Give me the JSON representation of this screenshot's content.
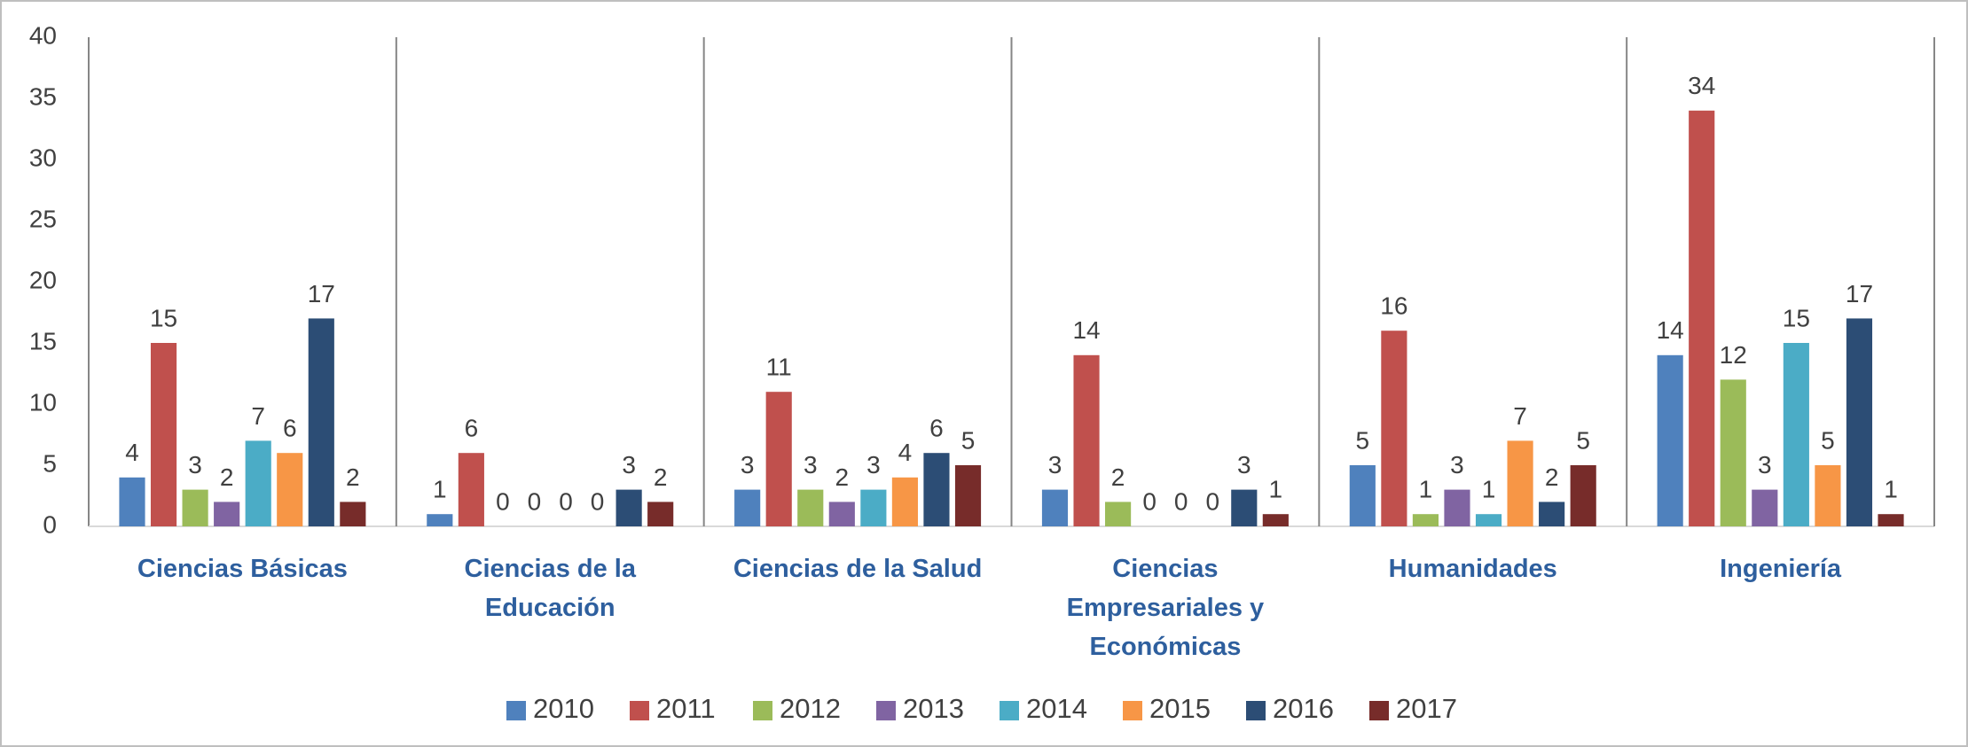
{
  "chart_data": {
    "type": "bar",
    "categories": [
      "Ciencias Básicas",
      "Ciencias de la Educación",
      "Ciencias de la Salud",
      "Ciencias Empresariales y Económicas",
      "Humanidades",
      "Ingeniería"
    ],
    "series": [
      {
        "name": "2010",
        "color": "#4f81bd",
        "values": [
          4,
          1,
          3,
          3,
          5,
          14
        ]
      },
      {
        "name": "2011",
        "color": "#c0504d",
        "values": [
          15,
          6,
          11,
          14,
          16,
          34
        ]
      },
      {
        "name": "2012",
        "color": "#9bbb59",
        "values": [
          3,
          0,
          3,
          2,
          1,
          12
        ]
      },
      {
        "name": "2013",
        "color": "#8064a2",
        "values": [
          2,
          0,
          2,
          0,
          3,
          3
        ]
      },
      {
        "name": "2014",
        "color": "#4bacc6",
        "values": [
          7,
          0,
          3,
          0,
          1,
          15
        ]
      },
      {
        "name": "2015",
        "color": "#f79646",
        "values": [
          6,
          0,
          4,
          0,
          7,
          5
        ]
      },
      {
        "name": "2016",
        "color": "#2c4d75",
        "values": [
          17,
          3,
          6,
          3,
          2,
          17
        ]
      },
      {
        "name": "2017",
        "color": "#772c2a",
        "values": [
          2,
          2,
          5,
          1,
          5,
          1
        ]
      }
    ],
    "ylim": [
      0,
      40
    ],
    "yticks": [
      0,
      5,
      10,
      15,
      20,
      25,
      30,
      35,
      40
    ],
    "grid": "x",
    "legend": "bottom"
  }
}
